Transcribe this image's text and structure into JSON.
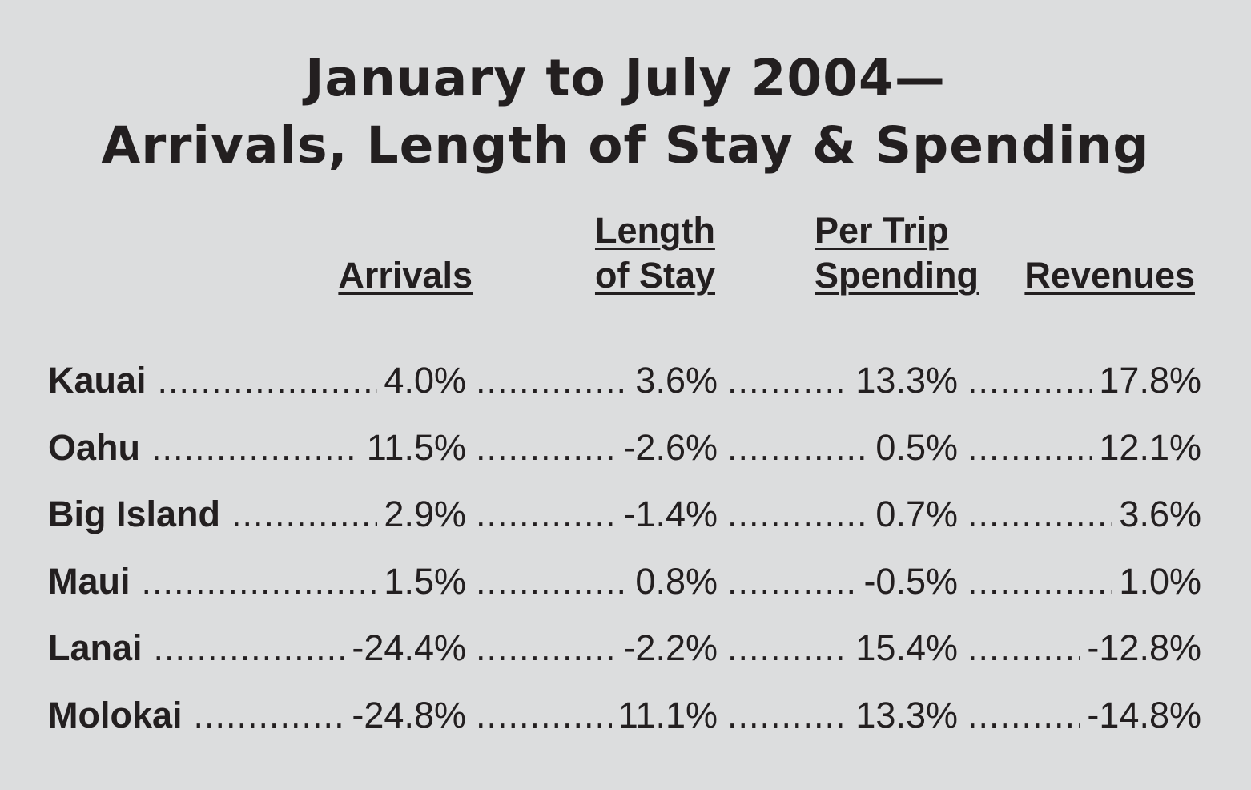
{
  "chart_data": {
    "type": "table",
    "title": [
      "January to July 2004—",
      "Arrivals, Length of Stay & Spending"
    ],
    "columns": [
      [
        "Arrivals"
      ],
      [
        "Length",
        "of Stay"
      ],
      [
        "Per Trip",
        "Spending"
      ],
      [
        "Revenues"
      ]
    ],
    "rows": [
      {
        "label": "Kauai",
        "values": [
          "4.0%",
          "3.6%",
          "13.3%",
          "17.8%"
        ]
      },
      {
        "label": "Oahu",
        "values": [
          "11.5%",
          "-2.6%",
          "0.5%",
          "12.1%"
        ]
      },
      {
        "label": "Big Island",
        "values": [
          "2.9%",
          "-1.4%",
          "0.7%",
          "3.6%"
        ]
      },
      {
        "label": "Maui",
        "values": [
          "1.5%",
          "0.8%",
          "-0.5%",
          "1.0%"
        ]
      },
      {
        "label": "Lanai",
        "values": [
          "-24.4%",
          "-2.2%",
          "15.4%",
          "-12.8%"
        ]
      },
      {
        "label": "Molokai",
        "values": [
          "-24.8%",
          "11.1%",
          "13.3%",
          "-14.8%"
        ]
      }
    ]
  }
}
